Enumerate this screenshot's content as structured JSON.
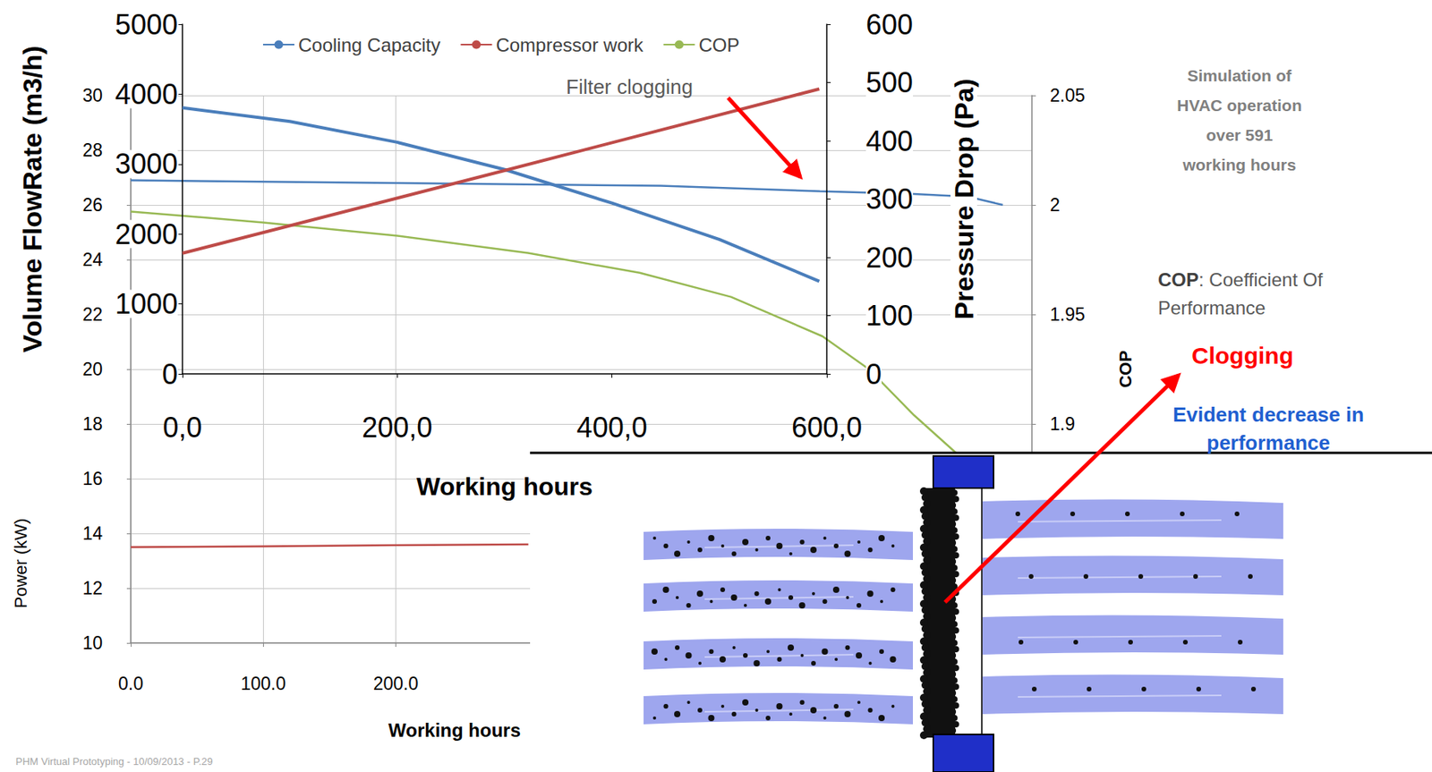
{
  "chart_data": [
    {
      "type": "line",
      "xlabel": "Working hours",
      "ylabel": "Power (kW)",
      "y2label": "COP",
      "xlim": [
        0,
        680
      ],
      "xticks": [
        {
          "value": 0,
          "label": "0.0"
        },
        {
          "value": 100,
          "label": "100.0"
        },
        {
          "value": 200,
          "label": "200.0"
        }
      ],
      "ylim": [
        10,
        30
      ],
      "yticks": [
        10,
        12,
        14,
        16,
        18,
        20,
        22,
        24,
        26,
        28,
        30
      ],
      "y2lim": [
        1.8,
        2.05
      ],
      "y2ticks": [
        1.9,
        1.95,
        2,
        2.05
      ],
      "grid": true,
      "legend": "top",
      "series": [
        {
          "name": "Cooling Capacity",
          "color": "#4a7ebb",
          "x": [
            0,
            200,
            400,
            520,
            591,
            632,
            658
          ],
          "values": [
            26.9,
            26.8,
            26.7,
            26.5,
            26.4,
            26.3,
            26.0
          ]
        },
        {
          "name": "Compressor work",
          "color": "#be4b48",
          "x": [
            0,
            100,
            200,
            300
          ],
          "values": [
            13.5,
            13.53,
            13.57,
            13.6
          ]
        },
        {
          "name": "COP",
          "color": "#98b954",
          "axis": "y2",
          "x": [
            0,
            100,
            200,
            300,
            384,
            453,
            522,
            557,
            591,
            626
          ],
          "values": [
            1.997,
            1.992,
            1.986,
            1.978,
            1.969,
            1.958,
            1.94,
            1.925,
            1.904,
            1.885
          ]
        }
      ]
    },
    {
      "type": "line",
      "xlabel": "Working hours",
      "ylabel": "Volume FlowRate (m3/h)",
      "y2label": "Pressure Drop (Pa)",
      "xlim": [
        0,
        600
      ],
      "xticks": [
        {
          "value": 0,
          "label": "0,0"
        },
        {
          "value": 200,
          "label": "200,0"
        },
        {
          "value": 400,
          "label": "400,0"
        },
        {
          "value": 600,
          "label": "600,0"
        }
      ],
      "ylim": [
        0,
        5000
      ],
      "yticks": [
        0,
        1000,
        2000,
        3000,
        4000,
        5000
      ],
      "y2lim": [
        0,
        600
      ],
      "y2ticks": [
        0,
        100,
        200,
        300,
        400,
        500,
        600
      ],
      "grid": false,
      "series": [
        {
          "color": "#4a7ebb",
          "x": [
            0,
            100,
            200,
            300,
            400,
            500,
            593
          ],
          "values": [
            3805,
            3610,
            3312,
            2922,
            2442,
            1922,
            1325
          ]
        },
        {
          "color": "#be4b48",
          "axis": "y2",
          "x": [
            0,
            300,
            593
          ],
          "values": [
            207,
            349,
            489
          ]
        }
      ]
    }
  ],
  "annotations": {
    "title": "Simulation of HVAC operation over 591 working hours",
    "filter_note": "Filter clogging",
    "definition": "COP: Coefficient Of Performance",
    "callout": "Clogging",
    "callout_note": "Evident decrease in performance",
    "footer": "PHM Virtual Prototyping - 10/09/2013 - P.29"
  }
}
